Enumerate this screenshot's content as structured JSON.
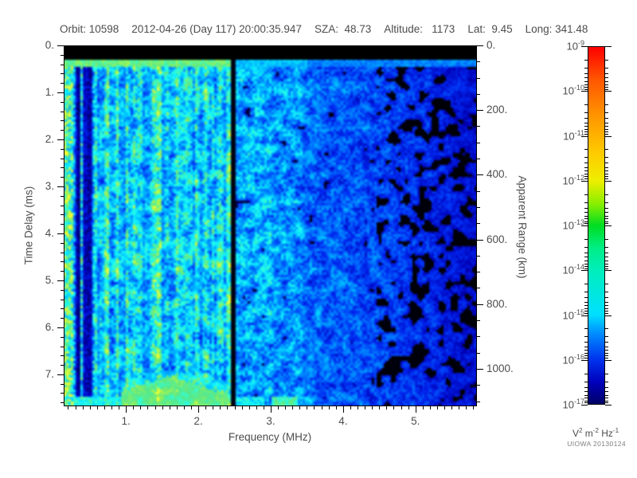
{
  "header": {
    "segments": [
      "Orbit: 10598",
      "2012-04-26 (Day 117) 20:00:35.947",
      "SZA:  48.73",
      "Altitude:   1173",
      "Lat:  9.45",
      "Long: 341.48"
    ]
  },
  "axes": {
    "left": {
      "label": "Time Delay (ms)",
      "tick_values": [
        0,
        1,
        2,
        3,
        4,
        5,
        6,
        7
      ],
      "tick_labels": [
        "0.",
        "1.",
        "2.",
        "3.",
        "4.",
        "5.",
        "6.",
        "7."
      ],
      "minor_step": 0.2,
      "range": [
        0,
        7.68
      ]
    },
    "right": {
      "label": "Apparent Range (km)",
      "tick_values": [
        0,
        200,
        400,
        600,
        800,
        1000
      ],
      "tick_labels": [
        "0.",
        "200.",
        "400.",
        "600.",
        "800.",
        "1000."
      ],
      "minor_step": 50,
      "range": [
        0,
        1116
      ]
    },
    "bottom": {
      "label": "Frequency (MHz)",
      "tick_values": [
        1,
        2,
        3,
        4,
        5
      ],
      "tick_labels": [
        "1.",
        "2.",
        "3.",
        "4.",
        "5."
      ],
      "minor_step": 0.1,
      "range": [
        0.14,
        5.85
      ]
    }
  },
  "colorbar": {
    "tick_exponents": [
      -9,
      -10,
      -11,
      -12,
      -13,
      -14,
      -15,
      -16,
      -17
    ],
    "units_parts": [
      [
        "V",
        "2"
      ],
      [
        " m",
        "-2"
      ],
      [
        " Hz",
        "-1"
      ]
    ],
    "gradient_stops": [
      [
        0.0,
        "#ff0000"
      ],
      [
        0.09,
        "#ff5500"
      ],
      [
        0.2,
        "#ff9900"
      ],
      [
        0.3,
        "#ffcc00"
      ],
      [
        0.375,
        "#eeee00"
      ],
      [
        0.44,
        "#88ee00"
      ],
      [
        0.5,
        "#00dd22"
      ],
      [
        0.565,
        "#00ee88"
      ],
      [
        0.625,
        "#00eebb"
      ],
      [
        0.75,
        "#00e0ff"
      ],
      [
        0.8,
        "#0090ff"
      ],
      [
        0.875,
        "#0033ee"
      ],
      [
        0.94,
        "#0000bb"
      ],
      [
        1.0,
        "#000066"
      ]
    ]
  },
  "credit": "UIOWA 20130124",
  "chart_data": {
    "type": "heatmap",
    "title": "",
    "xlabel": "Frequency (MHz)",
    "ylabel": "Time Delay (ms)",
    "y2label": "Apparent Range (km)",
    "zlabel": "V^2 m^-2 Hz^-1",
    "x_range_mhz": [
      0.14,
      5.85
    ],
    "x_ticks": [
      1,
      2,
      3,
      4,
      5
    ],
    "y_range_ms": [
      0,
      7.68
    ],
    "y_ticks_ms": [
      0,
      1,
      2,
      3,
      4,
      5,
      6,
      7
    ],
    "y2_range_km": [
      0,
      1116
    ],
    "y2_ticks_km": [
      0,
      200,
      400,
      600,
      800,
      1000
    ],
    "z_scale": "log",
    "z_range_exp": [
      -17,
      -9
    ],
    "legend_position": "right-colorbar",
    "grid": false,
    "value_colormap": [
      [
        0.0,
        "#000000"
      ],
      [
        0.1,
        "#00004d"
      ],
      [
        0.2,
        "#0000b4"
      ],
      [
        0.32,
        "#0028f0"
      ],
      [
        0.45,
        "#0078ff"
      ],
      [
        0.56,
        "#00c0ff"
      ],
      [
        0.64,
        "#10f0ff"
      ],
      [
        0.72,
        "#30ffd8"
      ],
      [
        0.8,
        "#58e88a"
      ],
      [
        0.88,
        "#8cf060"
      ],
      [
        1.0,
        "#f0ff30"
      ]
    ],
    "features": {
      "top_blackout_ms": [
        0,
        0.3
      ],
      "surface_line_ms": [
        0.3,
        0.46
      ],
      "plasma_stripe_zone_mhz": [
        0.14,
        0.58
      ],
      "stripe_dark_bands_mhz": [
        [
          0.295,
          0.375
        ],
        [
          0.415,
          0.545
        ]
      ],
      "transmitter_gap_mhz": [
        2.44,
        2.53
      ],
      "bright_zone_end_mhz": 2.44,
      "medium_zone_end_mhz": 3.45,
      "dim_zone_end_mhz": 4.45,
      "echo_hump": {
        "f_mhz": [
          0.92,
          2.44
        ],
        "peak_f_mhz": 1.62,
        "peak_width_mhz": 0.55,
        "base_depth_ms": 0.22,
        "peak_depth_ms": 0.58
      },
      "bottom_edge_segments": [
        {
          "f_mhz": [
            0.14,
            0.95
          ],
          "level": 0.58
        },
        {
          "f_mhz": [
            2.53,
            2.92
          ],
          "level": 0.55
        },
        {
          "f_mhz": [
            3.02,
            3.38
          ],
          "level": 0.66
        },
        {
          "f_mhz": [
            3.38,
            3.62
          ],
          "level": 0.45
        }
      ],
      "noise_seed": 777
    }
  }
}
